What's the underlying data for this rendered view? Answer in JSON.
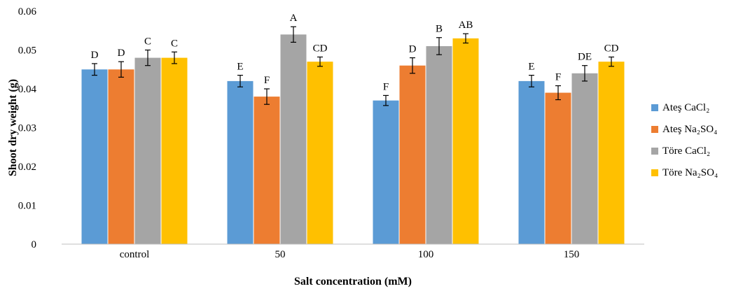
{
  "chart_data": {
    "type": "bar",
    "title": "",
    "xlabel": "Salt concentration (mM)",
    "ylabel": "Shoot dry weight (g)",
    "ylim": [
      0,
      0.06
    ],
    "yticks": [
      "0",
      "0.01",
      "0.02",
      "0.03",
      "0.04",
      "0.05",
      "0.06"
    ],
    "categories": [
      "control",
      "50",
      "100",
      "150"
    ],
    "legend_position": "right",
    "grid": false,
    "series": [
      {
        "name": "Ateş CaCl2",
        "name_html": "Ateş CaCl₂",
        "color": "#5b9bd5",
        "values": [
          0.045,
          0.042,
          0.037,
          0.042
        ],
        "errors": [
          0.0015,
          0.0015,
          0.0013,
          0.0015
        ],
        "letters": [
          "D",
          "E",
          "F",
          "E"
        ]
      },
      {
        "name": "Ateş Na2SO4",
        "name_html": "Ateş Na₂SO₄",
        "color": "#ed7d31",
        "values": [
          0.045,
          0.038,
          0.046,
          0.039
        ],
        "errors": [
          0.002,
          0.002,
          0.002,
          0.0018
        ],
        "letters": [
          "D",
          "F",
          "D",
          "F"
        ]
      },
      {
        "name": "Töre CaCl2",
        "name_html": "Töre CaCl₂",
        "color": "#a5a5a5",
        "values": [
          0.048,
          0.054,
          0.051,
          0.044
        ],
        "errors": [
          0.002,
          0.002,
          0.0022,
          0.002
        ],
        "letters": [
          "C",
          "A",
          "B",
          "DE"
        ]
      },
      {
        "name": "Töre Na2SO4",
        "name_html": "Töre Na₂SO₄",
        "color": "#ffc000",
        "values": [
          0.048,
          0.047,
          0.053,
          0.047
        ],
        "errors": [
          0.0015,
          0.0012,
          0.0012,
          0.0012
        ],
        "letters": [
          "C",
          "CD",
          "AB",
          "CD"
        ]
      }
    ]
  }
}
